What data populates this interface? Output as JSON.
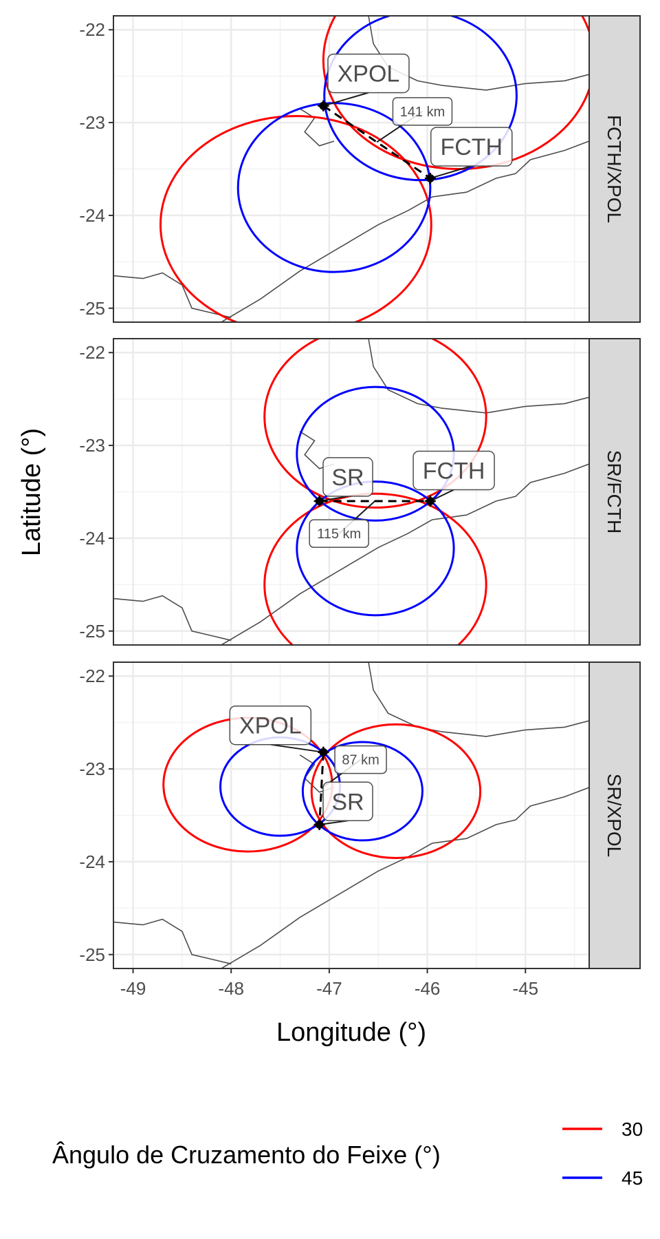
{
  "chart_data": {
    "type": "scatter",
    "xlabel": "Longitude (°)",
    "ylabel": "Latitude (°)",
    "xlim": [
      -49.2,
      -44.35
    ],
    "ylim": [
      -25.15,
      -21.85
    ],
    "x_ticks": [
      -49,
      -48,
      -47,
      -46,
      -45
    ],
    "y_ticks": [
      -22,
      -23,
      -24,
      -25
    ],
    "grid": true,
    "legend": {
      "title": "Ângulo de Cruzamento do Feixe (°)",
      "placement": "bottom",
      "entries": [
        {
          "label": "30",
          "color": "#ff0000"
        },
        {
          "label": "45",
          "color": "#0000ff"
        }
      ]
    },
    "colors": {
      "30": "#ff0000",
      "45": "#0000ff",
      "baseline": "#000000",
      "coast": "#4d4d4d",
      "strip": "#d9d9d9"
    },
    "facets": [
      {
        "panel": "FCTH/XPOL",
        "stations": [
          {
            "name": "XPOL",
            "lon": -47.06,
            "lat": -22.82,
            "label_lon": -46.6,
            "label_lat": -22.47
          },
          {
            "name": "FCTH",
            "lon": -45.97,
            "lat": -23.6,
            "label_lon": -45.55,
            "label_lat": -23.26
          }
        ],
        "distance_label": "141 km",
        "distance_pos": {
          "lon": -46.05,
          "lat": -22.88
        },
        "circles": [
          {
            "angle": "30",
            "center_lon": -47.34,
            "center_lat": -24.1,
            "r_lon": 1.38,
            "r_lat": 1.17
          },
          {
            "angle": "30",
            "center_lon": -45.68,
            "center_lat": -22.33,
            "r_lon": 1.38,
            "r_lat": 1.17
          },
          {
            "angle": "45",
            "center_lon": -46.95,
            "center_lat": -23.7,
            "r_lon": 0.98,
            "r_lat": 0.91
          },
          {
            "angle": "45",
            "center_lon": -46.07,
            "center_lat": -22.71,
            "r_lon": 0.98,
            "r_lat": 0.91
          }
        ]
      },
      {
        "panel": "SR/FCTH",
        "stations": [
          {
            "name": "SR",
            "lon": -47.1,
            "lat": -23.6,
            "label_lon": -46.81,
            "label_lat": -23.34
          },
          {
            "name": "FCTH",
            "lon": -45.97,
            "lat": -23.6,
            "label_lon": -45.73,
            "label_lat": -23.27
          }
        ],
        "distance_label": "115 km",
        "distance_pos": {
          "lon": -46.9,
          "lat": -23.95
        },
        "circles": [
          {
            "angle": "30",
            "center_lon": -46.53,
            "center_lat": -22.69,
            "r_lon": 1.13,
            "r_lat": 0.98
          },
          {
            "angle": "30",
            "center_lon": -46.53,
            "center_lat": -24.5,
            "r_lon": 1.13,
            "r_lat": 0.98
          },
          {
            "angle": "45",
            "center_lon": -46.53,
            "center_lat": -23.09,
            "r_lon": 0.8,
            "r_lat": 0.72
          },
          {
            "angle": "45",
            "center_lon": -46.53,
            "center_lat": -24.11,
            "r_lon": 0.8,
            "r_lat": 0.72
          }
        ]
      },
      {
        "panel": "SR/XPOL",
        "stations": [
          {
            "name": "XPOL",
            "lon": -47.06,
            "lat": -22.82,
            "label_lon": -47.6,
            "label_lat": -22.53
          },
          {
            "name": "SR",
            "lon": -47.1,
            "lat": -23.6,
            "label_lon": -46.81,
            "label_lat": -23.35
          }
        ],
        "distance_label": "87 km",
        "distance_pos": {
          "lon": -46.68,
          "lat": -22.9
        },
        "circles": [
          {
            "angle": "30",
            "center_lon": -47.83,
            "center_lat": -23.17,
            "r_lon": 0.86,
            "r_lat": 0.72
          },
          {
            "angle": "30",
            "center_lon": -46.32,
            "center_lat": -23.24,
            "r_lon": 0.86,
            "r_lat": 0.72
          },
          {
            "angle": "45",
            "center_lon": -47.5,
            "center_lat": -23.19,
            "r_lon": 0.61,
            "r_lat": 0.53
          },
          {
            "angle": "45",
            "center_lon": -46.66,
            "center_lat": -23.24,
            "r_lon": 0.61,
            "r_lat": 0.53
          }
        ]
      }
    ]
  }
}
